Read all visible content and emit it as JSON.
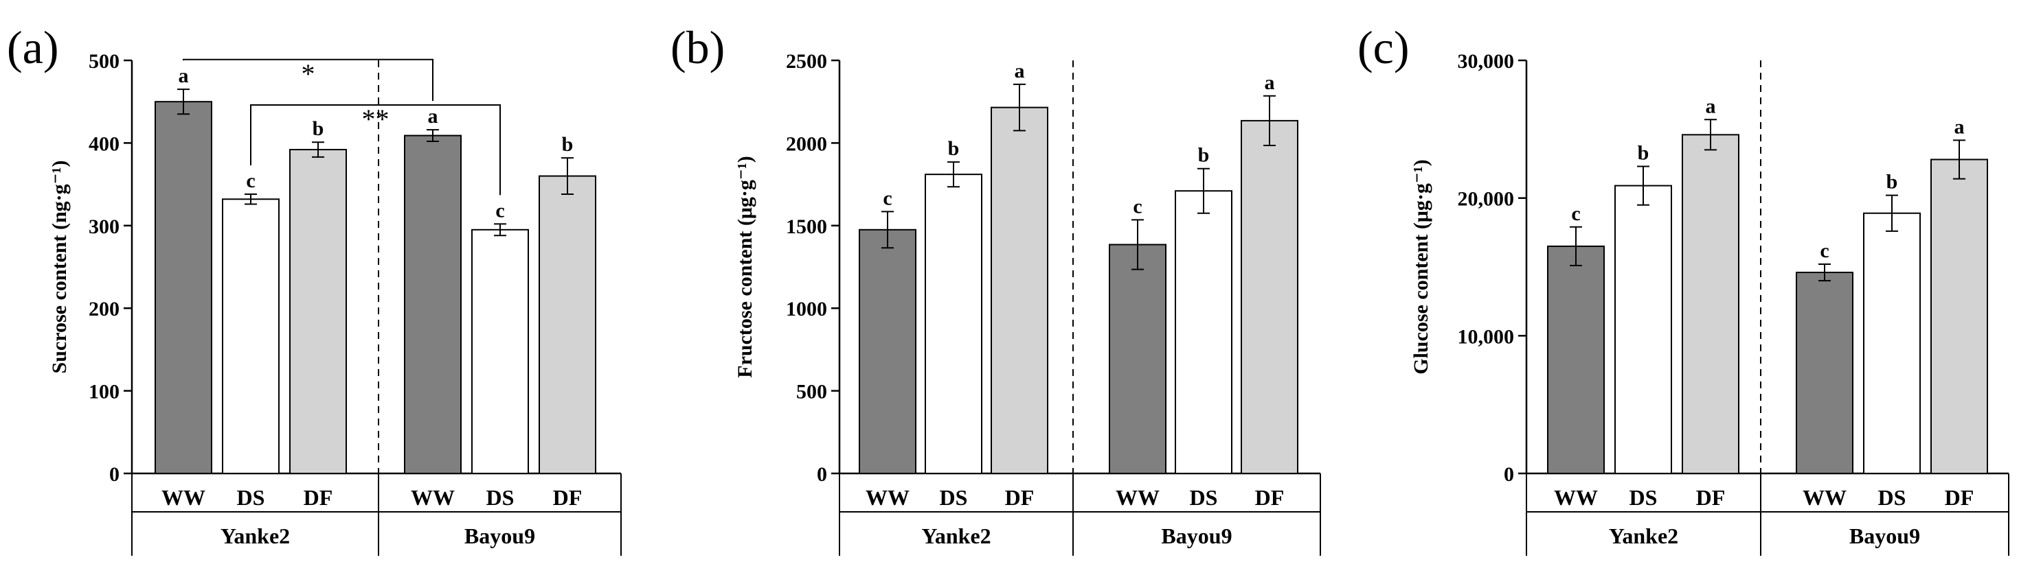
{
  "figure": {
    "colors": {
      "WW": "#808080",
      "DS": "#ffffff",
      "DF": "#d3d3d3",
      "stroke": "#000000"
    }
  },
  "chart_data": [
    {
      "type": "bar",
      "panel_label": "(a)",
      "ylabel": "Sucrose content (ng·g⁻¹)",
      "ylim": [
        0,
        500
      ],
      "yticks": [
        0,
        100,
        200,
        300,
        400,
        500
      ],
      "ytick_labels": [
        "0",
        "100",
        "200",
        "300",
        "400",
        "500"
      ],
      "groups": [
        "Yanke2",
        "Bayou9"
      ],
      "categories": [
        "WW",
        "DS",
        "DF"
      ],
      "bars": [
        {
          "group": "Yanke2",
          "category": "WW",
          "value": 450,
          "error": 15,
          "letter": "a"
        },
        {
          "group": "Yanke2",
          "category": "DS",
          "value": 332,
          "error": 6,
          "letter": "c"
        },
        {
          "group": "Yanke2",
          "category": "DF",
          "value": 392,
          "error": 9,
          "letter": "b"
        },
        {
          "group": "Bayou9",
          "category": "WW",
          "value": 409,
          "error": 7,
          "letter": "a"
        },
        {
          "group": "Bayou9",
          "category": "DS",
          "value": 295,
          "error": 7,
          "letter": "c"
        },
        {
          "group": "Bayou9",
          "category": "DF",
          "value": 360,
          "error": 22,
          "letter": "b"
        }
      ],
      "significance": [
        {
          "from": 0,
          "to": 3,
          "level": 501,
          "label": "*"
        },
        {
          "from": 1,
          "to": 4,
          "level": 446,
          "label": "**"
        }
      ]
    },
    {
      "type": "bar",
      "panel_label": "(b)",
      "ylabel": "Fructose content (μg·g⁻¹)",
      "ylim": [
        0,
        2500
      ],
      "yticks": [
        0,
        500,
        1000,
        1500,
        2000,
        2500
      ],
      "ytick_labels": [
        "0",
        "500",
        "1000",
        "1500",
        "2000",
        "2500"
      ],
      "groups": [
        "Yanke2",
        "Bayou9"
      ],
      "categories": [
        "WW",
        "DS",
        "DF"
      ],
      "bars": [
        {
          "group": "Yanke2",
          "category": "WW",
          "value": 1475,
          "error": 110,
          "letter": "c"
        },
        {
          "group": "Yanke2",
          "category": "DS",
          "value": 1810,
          "error": 75,
          "letter": "b"
        },
        {
          "group": "Yanke2",
          "category": "DF",
          "value": 2215,
          "error": 140,
          "letter": "a"
        },
        {
          "group": "Bayou9",
          "category": "WW",
          "value": 1385,
          "error": 150,
          "letter": "c"
        },
        {
          "group": "Bayou9",
          "category": "DS",
          "value": 1710,
          "error": 135,
          "letter": "b"
        },
        {
          "group": "Bayou9",
          "category": "DF",
          "value": 2135,
          "error": 150,
          "letter": "a"
        }
      ],
      "significance": []
    },
    {
      "type": "bar",
      "panel_label": "(c)",
      "ylabel": "Glucose content (μg·g⁻¹)",
      "ylim": [
        0,
        30000
      ],
      "yticks": [
        0,
        10000,
        20000,
        30000
      ],
      "ytick_labels": [
        "0",
        "10,000",
        "20,000",
        "30,000"
      ],
      "groups": [
        "Yanke2",
        "Bayou9"
      ],
      "categories": [
        "WW",
        "DS",
        "DF"
      ],
      "bars": [
        {
          "group": "Yanke2",
          "category": "WW",
          "value": 16500,
          "error": 1400,
          "letter": "c"
        },
        {
          "group": "Yanke2",
          "category": "DS",
          "value": 20900,
          "error": 1400,
          "letter": "b"
        },
        {
          "group": "Yanke2",
          "category": "DF",
          "value": 24600,
          "error": 1100,
          "letter": "a"
        },
        {
          "group": "Bayou9",
          "category": "WW",
          "value": 14600,
          "error": 600,
          "letter": "c"
        },
        {
          "group": "Bayou9",
          "category": "DS",
          "value": 18900,
          "error": 1300,
          "letter": "b"
        },
        {
          "group": "Bayou9",
          "category": "DF",
          "value": 22800,
          "error": 1400,
          "letter": "a"
        }
      ],
      "significance": []
    }
  ]
}
